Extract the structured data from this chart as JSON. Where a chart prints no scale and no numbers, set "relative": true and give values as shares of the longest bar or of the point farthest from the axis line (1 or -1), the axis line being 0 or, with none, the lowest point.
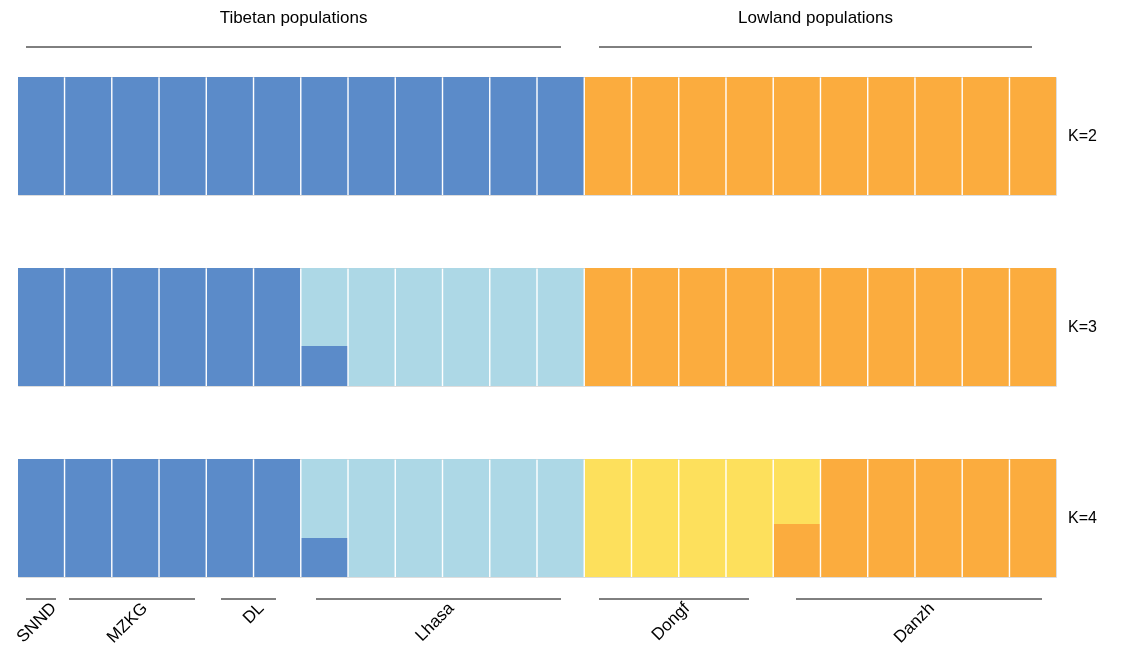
{
  "chart_data": [
    {
      "type": "bar",
      "stacked": true,
      "relative": true,
      "ylabel": "K=2",
      "categories": [
        null,
        null,
        null,
        null,
        null,
        null,
        null,
        null,
        null,
        null,
        null,
        null,
        null,
        null,
        null,
        null,
        null,
        null,
        null,
        null,
        null,
        null
      ],
      "series": [
        {
          "color": "#5b8bc9",
          "values": [
            1,
            1,
            1,
            1,
            1,
            1,
            1,
            1,
            1,
            1,
            1,
            1,
            0,
            0,
            0,
            0,
            0,
            0,
            0,
            0,
            0,
            0
          ]
        },
        {
          "color": "#fbac3e",
          "values": [
            0,
            0,
            0,
            0,
            0,
            0,
            0,
            0,
            0,
            0,
            0,
            0,
            1,
            1,
            1,
            1,
            1,
            1,
            1,
            1,
            1,
            1
          ]
        }
      ],
      "annotations": [
        "Tibetan populations",
        "Lowland populations"
      ]
    },
    {
      "type": "bar",
      "stacked": true,
      "relative": true,
      "ylabel": "K=3",
      "categories": [
        null,
        null,
        null,
        null,
        null,
        null,
        null,
        null,
        null,
        null,
        null,
        null,
        null,
        null,
        null,
        null,
        null,
        null,
        null,
        null,
        null,
        null
      ],
      "series": [
        {
          "color": "#5b8bc9",
          "values": [
            1,
            1,
            1,
            1,
            1,
            1,
            0.34,
            0,
            0,
            0,
            0,
            0,
            0,
            0,
            0,
            0,
            0,
            0,
            0,
            0,
            0,
            0
          ]
        },
        {
          "color": "#add8e6",
          "values": [
            0,
            0,
            0,
            0,
            0,
            0,
            0.66,
            1,
            1,
            1,
            1,
            1,
            0,
            0,
            0,
            0,
            0,
            0,
            0,
            0,
            0,
            0
          ]
        },
        {
          "color": "#fbac3e",
          "values": [
            0,
            0,
            0,
            0,
            0,
            0,
            0,
            0,
            0,
            0,
            0,
            0,
            1,
            1,
            1,
            1,
            1,
            1,
            1,
            1,
            1,
            1
          ]
        }
      ]
    },
    {
      "type": "bar",
      "stacked": true,
      "relative": true,
      "ylabel": "K=4",
      "categories": [
        null,
        null,
        null,
        null,
        null,
        null,
        null,
        null,
        null,
        null,
        null,
        null,
        null,
        null,
        null,
        null,
        null,
        null,
        null,
        null,
        null,
        null
      ],
      "series": [
        {
          "color": "#5b8bc9",
          "values": [
            1,
            1,
            1,
            1,
            1,
            1,
            0.33,
            0,
            0,
            0,
            0,
            0,
            0,
            0,
            0,
            0,
            0,
            0,
            0,
            0,
            0,
            0
          ]
        },
        {
          "color": "#add8e6",
          "values": [
            0,
            0,
            0,
            0,
            0,
            0,
            0.67,
            1,
            1,
            1,
            1,
            1,
            0,
            0,
            0,
            0,
            0,
            0,
            0,
            0,
            0,
            0
          ]
        },
        {
          "color": "#fbac3e",
          "values": [
            0,
            0,
            0,
            0,
            0,
            0,
            0,
            0,
            0,
            0,
            0,
            0,
            0,
            0,
            0,
            0,
            0.45,
            1,
            1,
            1,
            1,
            1
          ]
        },
        {
          "color": "#fde05c",
          "values": [
            0,
            0,
            0,
            0,
            0,
            0,
            0,
            0,
            0,
            0,
            0,
            0,
            1,
            1,
            1,
            1,
            0.55,
            0,
            0,
            0,
            0,
            0
          ]
        }
      ],
      "annotations": [
        "SNND",
        "MZKG",
        "DL",
        "Lhasa",
        "Dongf",
        "Danzh"
      ]
    }
  ]
}
